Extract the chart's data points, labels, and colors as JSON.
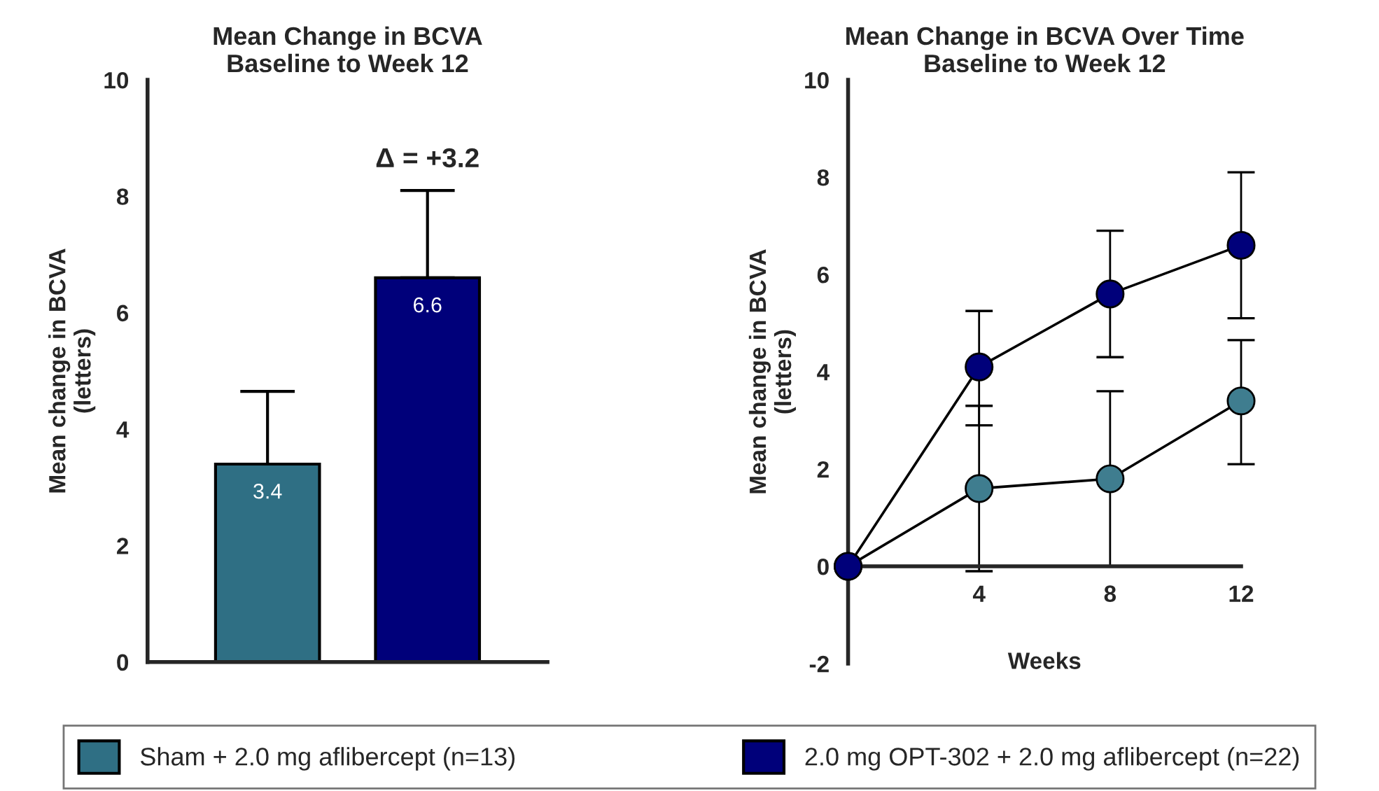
{
  "chart_data": [
    {
      "type": "bar",
      "title": "Mean Change in BCVA\nBaseline to Week 12",
      "ylabel": "Mean change in BCVA\n(letters)",
      "categories": [
        null,
        null
      ],
      "legend": "bottom",
      "series": [
        {
          "name": "Sham + 2.0 mg aflibercept (n=13)",
          "color": "#2f6f84",
          "values": [
            3.4,
            null
          ],
          "errors": [
            [
              3.4,
              4.65
            ],
            null
          ]
        },
        {
          "name": "2.0 mg OPT-302 + 2.0 mg aflibercept (n=22)",
          "color": "#00007a",
          "values": [
            null,
            6.6
          ],
          "errors": [
            null,
            [
              6.6,
              8.1
            ]
          ]
        }
      ],
      "data_labels": true,
      "ylim": [
        0,
        10
      ],
      "yticks": [
        0,
        2,
        4,
        6,
        8,
        10
      ],
      "annotations": [
        "Δ = +3.2"
      ]
    },
    {
      "type": "line",
      "title": "Mean Change in BCVA Over Time\nBaseline to Week 12",
      "xlabel": "Weeks",
      "ylabel": "Mean change in BCVA\n(letters)",
      "x": [
        0,
        4,
        8,
        12
      ],
      "marker": "circle",
      "series": [
        {
          "color": "#3f7d8f",
          "values": [
            0,
            1.6,
            1.8,
            3.4
          ],
          "errors": [
            null,
            [
              -0.1,
              3.3
            ],
            [
              0,
              3.6
            ],
            [
              2.1,
              4.65
            ]
          ]
        },
        {
          "color": "#00007a",
          "values": [
            0,
            4.1,
            5.6,
            6.6
          ],
          "errors": [
            null,
            [
              2.9,
              5.25
            ],
            [
              4.3,
              6.9
            ],
            [
              5.1,
              8.1
            ]
          ]
        }
      ],
      "xlim": [
        0,
        12
      ],
      "xticks": [
        4,
        8,
        12
      ],
      "ylim": [
        -2,
        10
      ],
      "yticks": [
        -2,
        0,
        2,
        4,
        6,
        8,
        10
      ]
    }
  ]
}
